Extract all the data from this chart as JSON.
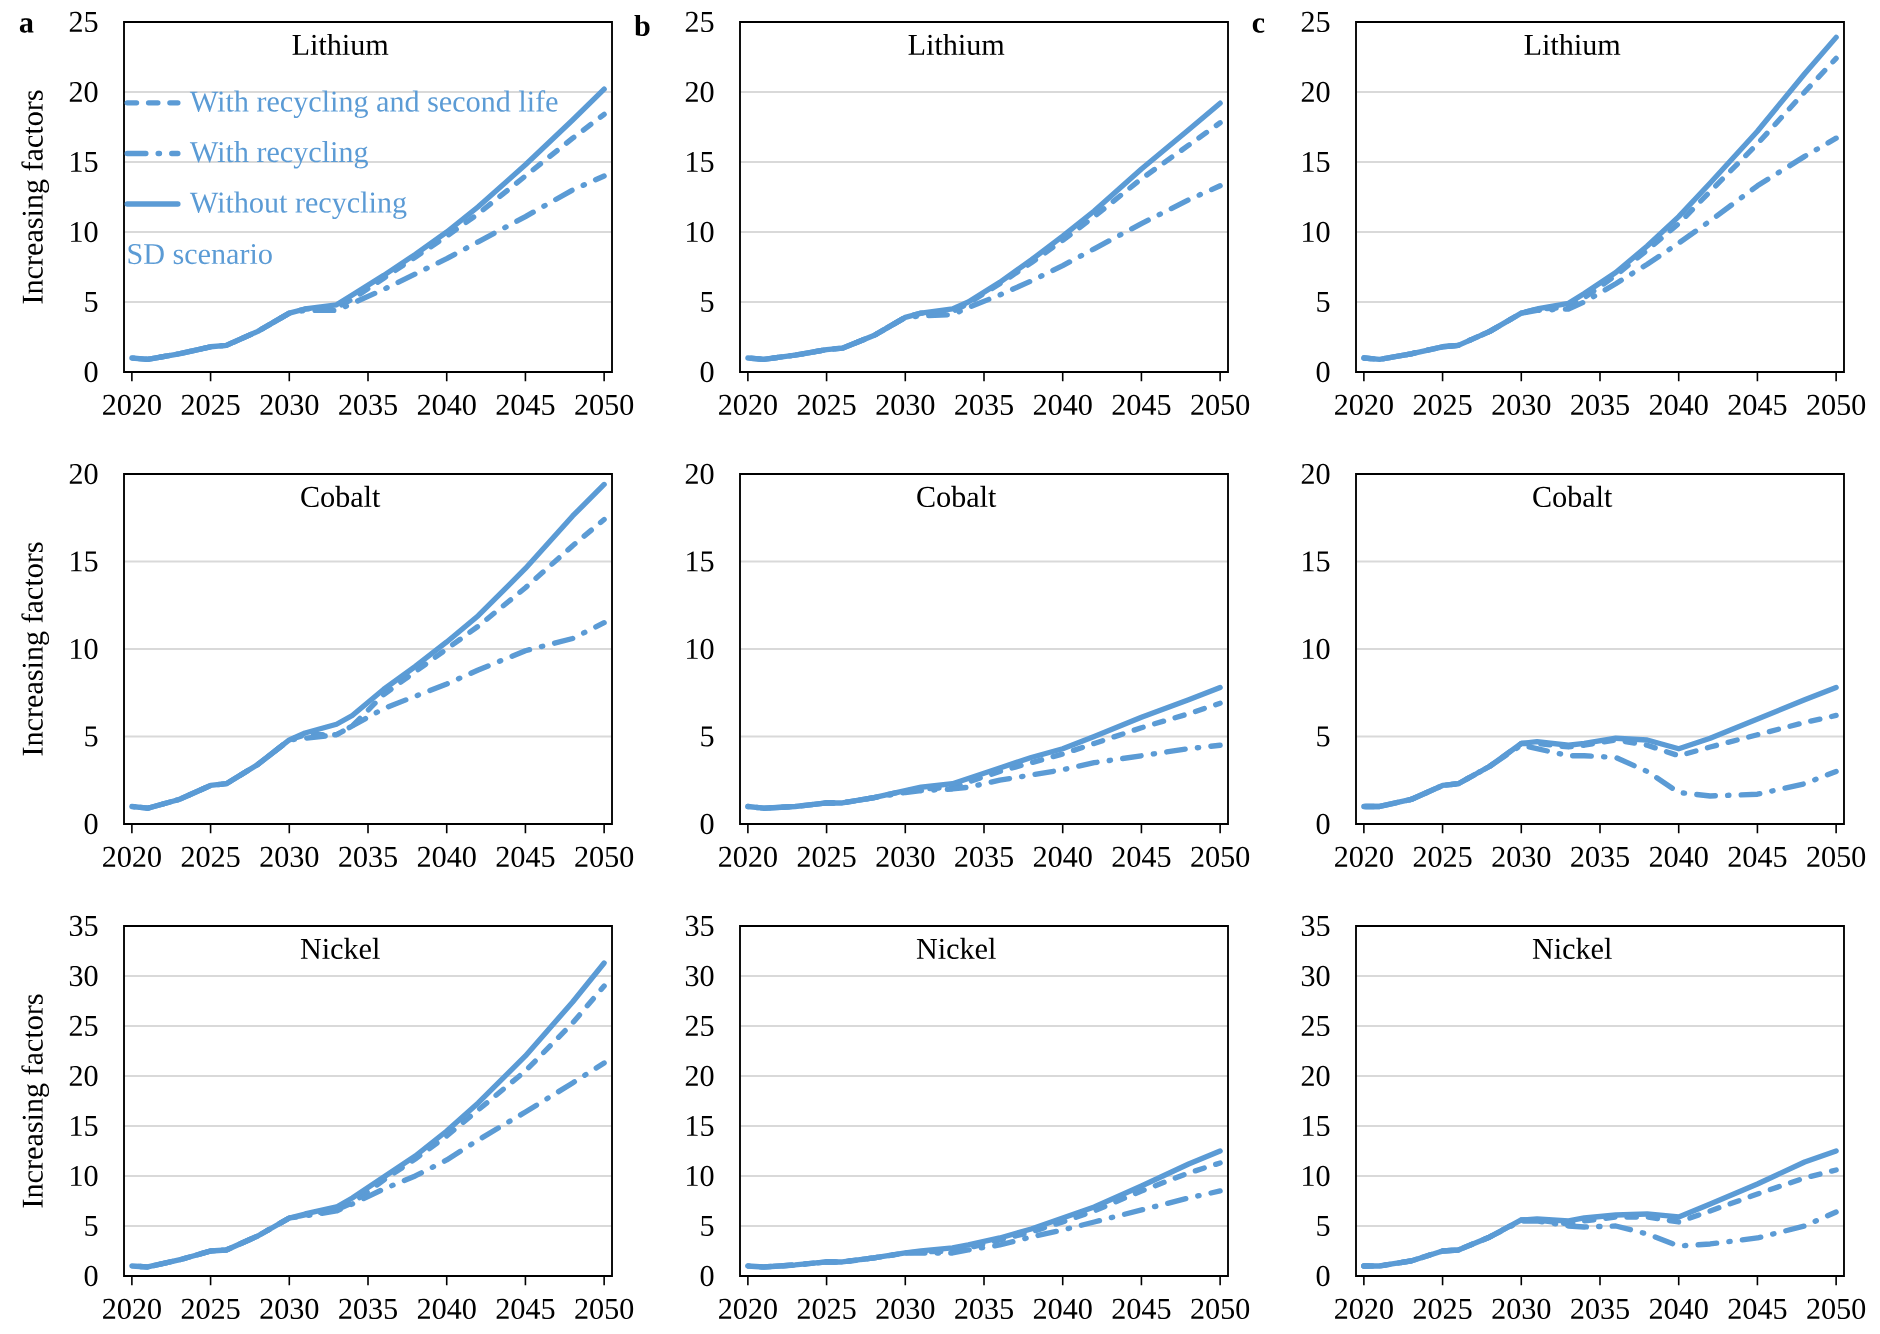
{
  "chart_data": [
    {
      "type": "line",
      "title": "Lithium",
      "annotations": [
        "a",
        "SD scenario"
      ],
      "ylabel": "Increasing factors",
      "legend": "top left",
      "grid": "y",
      "x": [
        2020,
        2021,
        2023,
        2025,
        2026,
        2028,
        2030,
        2031,
        2033,
        2034,
        2036,
        2038,
        2040,
        2042,
        2045,
        2048,
        2050
      ],
      "xlim": [
        2019.5,
        2050.5
      ],
      "xticks": [
        2020,
        2025,
        2030,
        2035,
        2040,
        2045,
        2050
      ],
      "ylim": [
        0,
        25
      ],
      "yticks": [
        0,
        5,
        10,
        15,
        20,
        25
      ],
      "series": [
        {
          "name": "With recycling and second life",
          "color": "#5b9bd5",
          "line_style": "dashed",
          "values": [
            1.0,
            0.9,
            1.3,
            1.8,
            1.9,
            2.9,
            4.2,
            4.5,
            4.6,
            5.2,
            6.7,
            8.2,
            9.7,
            11.3,
            14.0,
            16.7,
            18.4
          ]
        },
        {
          "name": "With recycling",
          "color": "#5b9bd5",
          "line_style": "dashdot",
          "values": [
            1.0,
            0.9,
            1.3,
            1.8,
            1.9,
            2.9,
            4.2,
            4.4,
            4.4,
            4.9,
            5.9,
            7.0,
            8.1,
            9.3,
            11.1,
            13.0,
            14.0
          ]
        },
        {
          "name": "Without recycling",
          "color": "#5b9bd5",
          "line_style": "solid",
          "values": [
            1.0,
            0.9,
            1.3,
            1.8,
            1.9,
            2.9,
            4.2,
            4.5,
            4.8,
            5.5,
            6.9,
            8.4,
            10.0,
            11.8,
            14.8,
            18.0,
            20.2
          ]
        }
      ]
    },
    {
      "type": "line",
      "title": "Lithium",
      "annotations": [
        "b"
      ],
      "grid": "y",
      "x": [
        2020,
        2021,
        2023,
        2025,
        2026,
        2028,
        2030,
        2031,
        2033,
        2034,
        2036,
        2038,
        2040,
        2042,
        2045,
        2048,
        2050
      ],
      "xlim": [
        2019.5,
        2050.5
      ],
      "xticks": [
        2020,
        2025,
        2030,
        2035,
        2040,
        2045,
        2050
      ],
      "ylim": [
        0,
        25
      ],
      "yticks": [
        0,
        5,
        10,
        15,
        20,
        25
      ],
      "series": [
        {
          "color": "#5b9bd5",
          "line_style": "dashed",
          "values": [
            1.0,
            0.9,
            1.2,
            1.6,
            1.7,
            2.6,
            3.9,
            4.2,
            4.3,
            4.9,
            6.3,
            7.8,
            9.4,
            11.1,
            13.8,
            16.2,
            17.8
          ]
        },
        {
          "color": "#5b9bd5",
          "line_style": "dashdot",
          "values": [
            1.0,
            0.9,
            1.2,
            1.6,
            1.7,
            2.6,
            3.9,
            4.0,
            4.1,
            4.6,
            5.5,
            6.5,
            7.6,
            8.8,
            10.6,
            12.3,
            13.3
          ]
        },
        {
          "color": "#5b9bd5",
          "line_style": "solid",
          "values": [
            1.0,
            0.9,
            1.2,
            1.6,
            1.7,
            2.6,
            3.9,
            4.2,
            4.5,
            5.0,
            6.4,
            8.0,
            9.7,
            11.5,
            14.5,
            17.3,
            19.2
          ]
        }
      ]
    },
    {
      "type": "line",
      "title": "Lithium",
      "annotations": [
        "c"
      ],
      "grid": "y",
      "x": [
        2020,
        2021,
        2023,
        2025,
        2026,
        2028,
        2030,
        2031,
        2033,
        2034,
        2036,
        2038,
        2040,
        2042,
        2045,
        2048,
        2050
      ],
      "xlim": [
        2019.5,
        2050.5
      ],
      "xticks": [
        2020,
        2025,
        2030,
        2035,
        2040,
        2045,
        2050
      ],
      "ylim": [
        0,
        25
      ],
      "yticks": [
        0,
        5,
        10,
        15,
        20,
        25
      ],
      "series": [
        {
          "color": "#5b9bd5",
          "line_style": "dashed",
          "values": [
            1.0,
            0.9,
            1.3,
            1.8,
            1.9,
            2.9,
            4.2,
            4.5,
            4.6,
            5.3,
            6.9,
            8.7,
            10.6,
            12.9,
            16.3,
            20.0,
            22.4
          ]
        },
        {
          "color": "#5b9bd5",
          "line_style": "dashdot",
          "values": [
            1.0,
            0.9,
            1.3,
            1.8,
            1.9,
            2.9,
            4.2,
            4.4,
            4.5,
            5.0,
            6.3,
            7.7,
            9.2,
            10.8,
            13.3,
            15.4,
            16.7
          ]
        },
        {
          "color": "#5b9bd5",
          "line_style": "solid",
          "values": [
            1.0,
            0.9,
            1.3,
            1.8,
            1.9,
            2.9,
            4.2,
            4.5,
            4.9,
            5.6,
            7.1,
            9.0,
            11.1,
            13.5,
            17.2,
            21.3,
            23.9
          ]
        }
      ]
    },
    {
      "type": "line",
      "title": "Cobalt",
      "ylabel": "Increasing factors",
      "grid": "y",
      "x": [
        2020,
        2021,
        2023,
        2025,
        2026,
        2028,
        2030,
        2031,
        2033,
        2034,
        2036,
        2038,
        2040,
        2042,
        2045,
        2048,
        2050
      ],
      "xlim": [
        2019.5,
        2050.5
      ],
      "xticks": [
        2020,
        2025,
        2030,
        2035,
        2040,
        2045,
        2050
      ],
      "ylim": [
        0,
        20
      ],
      "yticks": [
        0,
        5,
        10,
        15,
        20
      ],
      "series": [
        {
          "color": "#5b9bd5",
          "line_style": "dashed",
          "values": [
            1.0,
            0.9,
            1.4,
            2.2,
            2.3,
            3.4,
            4.8,
            5.1,
            5.1,
            5.6,
            7.4,
            8.7,
            10.0,
            11.3,
            13.5,
            15.9,
            17.4
          ]
        },
        {
          "color": "#5b9bd5",
          "line_style": "dashdot",
          "values": [
            1.0,
            0.9,
            1.4,
            2.2,
            2.3,
            3.4,
            4.8,
            4.9,
            5.1,
            5.6,
            6.6,
            7.3,
            8.0,
            8.8,
            9.9,
            10.6,
            11.5
          ]
        },
        {
          "color": "#5b9bd5",
          "line_style": "solid",
          "values": [
            1.0,
            0.9,
            1.4,
            2.2,
            2.3,
            3.4,
            4.8,
            5.2,
            5.7,
            6.2,
            7.7,
            9.0,
            10.4,
            11.9,
            14.6,
            17.6,
            19.4
          ]
        }
      ]
    },
    {
      "type": "line",
      "title": "Cobalt",
      "grid": "y",
      "x": [
        2020,
        2021,
        2023,
        2025,
        2026,
        2028,
        2030,
        2031,
        2033,
        2034,
        2036,
        2038,
        2040,
        2042,
        2045,
        2048,
        2050
      ],
      "xlim": [
        2019.5,
        2050.5
      ],
      "xticks": [
        2020,
        2025,
        2030,
        2035,
        2040,
        2045,
        2050
      ],
      "ylim": [
        0,
        20
      ],
      "yticks": [
        0,
        5,
        10,
        15,
        20
      ],
      "series": [
        {
          "color": "#5b9bd5",
          "line_style": "dashed",
          "values": [
            1.0,
            0.9,
            1.0,
            1.2,
            1.2,
            1.5,
            1.9,
            2.0,
            2.1,
            2.4,
            3.0,
            3.5,
            4.0,
            4.6,
            5.5,
            6.3,
            6.9
          ]
        },
        {
          "color": "#5b9bd5",
          "line_style": "dashdot",
          "values": [
            1.0,
            0.9,
            1.0,
            1.2,
            1.2,
            1.5,
            1.8,
            1.9,
            2.0,
            2.1,
            2.5,
            2.8,
            3.1,
            3.5,
            3.9,
            4.3,
            4.5
          ]
        },
        {
          "color": "#5b9bd5",
          "line_style": "solid",
          "values": [
            1.0,
            0.9,
            1.0,
            1.2,
            1.2,
            1.5,
            1.9,
            2.1,
            2.3,
            2.6,
            3.2,
            3.8,
            4.3,
            5.0,
            6.1,
            7.1,
            7.8
          ]
        }
      ]
    },
    {
      "type": "line",
      "title": "Cobalt",
      "grid": "y",
      "x": [
        2020,
        2021,
        2023,
        2025,
        2026,
        2028,
        2030,
        2031,
        2033,
        2034,
        2036,
        2038,
        2040,
        2042,
        2045,
        2048,
        2050
      ],
      "xlim": [
        2019.5,
        2050.5
      ],
      "xticks": [
        2020,
        2025,
        2030,
        2035,
        2040,
        2045,
        2050
      ],
      "ylim": [
        0,
        20
      ],
      "yticks": [
        0,
        5,
        10,
        15,
        20
      ],
      "series": [
        {
          "color": "#5b9bd5",
          "line_style": "dashed",
          "values": [
            1.0,
            1.0,
            1.4,
            2.2,
            2.3,
            3.3,
            4.6,
            4.6,
            4.4,
            4.5,
            4.8,
            4.5,
            3.9,
            4.4,
            5.1,
            5.8,
            6.2
          ]
        },
        {
          "color": "#5b9bd5",
          "line_style": "dashdot",
          "values": [
            1.0,
            1.0,
            1.4,
            2.2,
            2.3,
            3.3,
            4.5,
            4.3,
            3.9,
            3.9,
            3.8,
            3.0,
            1.8,
            1.6,
            1.7,
            2.3,
            3.0
          ]
        },
        {
          "color": "#5b9bd5",
          "line_style": "solid",
          "values": [
            1.0,
            1.0,
            1.4,
            2.2,
            2.3,
            3.3,
            4.6,
            4.7,
            4.5,
            4.6,
            4.9,
            4.8,
            4.3,
            4.9,
            6.0,
            7.1,
            7.8
          ]
        }
      ]
    },
    {
      "type": "line",
      "title": "Nickel",
      "ylabel": "Increasing factors",
      "grid": "y",
      "x": [
        2020,
        2021,
        2023,
        2025,
        2026,
        2028,
        2030,
        2031,
        2033,
        2034,
        2036,
        2038,
        2040,
        2042,
        2045,
        2048,
        2050
      ],
      "xlim": [
        2019.5,
        2050.5
      ],
      "xticks": [
        2020,
        2025,
        2030,
        2035,
        2040,
        2045,
        2050
      ],
      "ylim": [
        0,
        35
      ],
      "yticks": [
        0,
        5,
        10,
        15,
        20,
        25,
        30,
        35
      ],
      "series": [
        {
          "color": "#5b9bd5",
          "line_style": "dashed",
          "values": [
            1.0,
            0.9,
            1.6,
            2.5,
            2.6,
            4.0,
            5.8,
            6.1,
            6.6,
            7.3,
            9.6,
            11.7,
            14.0,
            16.6,
            20.5,
            25.3,
            29.0
          ]
        },
        {
          "color": "#5b9bd5",
          "line_style": "dashdot",
          "values": [
            1.0,
            0.9,
            1.6,
            2.5,
            2.6,
            4.0,
            5.8,
            6.0,
            6.5,
            7.2,
            8.7,
            10.0,
            11.6,
            13.6,
            16.4,
            19.3,
            21.3
          ]
        },
        {
          "color": "#5b9bd5",
          "line_style": "solid",
          "values": [
            1.0,
            0.9,
            1.6,
            2.5,
            2.6,
            4.0,
            5.8,
            6.2,
            6.9,
            7.8,
            9.9,
            12.0,
            14.5,
            17.3,
            22.0,
            27.4,
            31.3
          ]
        }
      ]
    },
    {
      "type": "line",
      "title": "Nickel",
      "grid": "y",
      "x": [
        2020,
        2021,
        2023,
        2025,
        2026,
        2028,
        2030,
        2031,
        2033,
        2034,
        2036,
        2038,
        2040,
        2042,
        2045,
        2048,
        2050
      ],
      "xlim": [
        2019.5,
        2050.5
      ],
      "xticks": [
        2020,
        2025,
        2030,
        2035,
        2040,
        2045,
        2050
      ],
      "ylim": [
        0,
        35
      ],
      "yticks": [
        0,
        5,
        10,
        15,
        20,
        25,
        30,
        35
      ],
      "series": [
        {
          "color": "#5b9bd5",
          "line_style": "dashed",
          "values": [
            1.0,
            0.9,
            1.1,
            1.4,
            1.4,
            1.8,
            2.3,
            2.4,
            2.5,
            2.8,
            3.6,
            4.4,
            5.4,
            6.5,
            8.5,
            10.3,
            11.3
          ]
        },
        {
          "color": "#5b9bd5",
          "line_style": "dashdot",
          "values": [
            1.0,
            0.9,
            1.1,
            1.4,
            1.4,
            1.8,
            2.3,
            2.3,
            2.3,
            2.6,
            3.1,
            3.9,
            4.6,
            5.4,
            6.6,
            7.8,
            8.5
          ]
        },
        {
          "color": "#5b9bd5",
          "line_style": "solid",
          "values": [
            1.0,
            0.9,
            1.1,
            1.4,
            1.4,
            1.8,
            2.3,
            2.5,
            2.8,
            3.1,
            3.8,
            4.7,
            5.8,
            6.9,
            9.0,
            11.2,
            12.5
          ]
        }
      ]
    },
    {
      "type": "line",
      "title": "Nickel",
      "grid": "y",
      "x": [
        2020,
        2021,
        2023,
        2025,
        2026,
        2028,
        2030,
        2031,
        2033,
        2034,
        2036,
        2038,
        2040,
        2042,
        2045,
        2048,
        2050
      ],
      "xlim": [
        2019.5,
        2050.5
      ],
      "xticks": [
        2020,
        2025,
        2030,
        2035,
        2040,
        2045,
        2050
      ],
      "ylim": [
        0,
        35
      ],
      "yticks": [
        0,
        5,
        10,
        15,
        20,
        25,
        30,
        35
      ],
      "series": [
        {
          "color": "#5b9bd5",
          "line_style": "dashed",
          "values": [
            1.0,
            1.0,
            1.5,
            2.5,
            2.6,
            3.9,
            5.6,
            5.6,
            5.2,
            5.5,
            5.9,
            5.9,
            5.4,
            6.5,
            8.2,
            9.8,
            10.6
          ]
        },
        {
          "color": "#5b9bd5",
          "line_style": "dashdot",
          "values": [
            1.0,
            1.0,
            1.5,
            2.5,
            2.6,
            3.9,
            5.5,
            5.5,
            5.0,
            4.9,
            5.0,
            4.2,
            3.0,
            3.2,
            3.8,
            5.0,
            6.4
          ]
        },
        {
          "color": "#5b9bd5",
          "line_style": "solid",
          "values": [
            1.0,
            1.0,
            1.5,
            2.5,
            2.6,
            3.9,
            5.6,
            5.7,
            5.5,
            5.8,
            6.1,
            6.2,
            5.9,
            7.2,
            9.2,
            11.4,
            12.5
          ]
        }
      ]
    }
  ]
}
